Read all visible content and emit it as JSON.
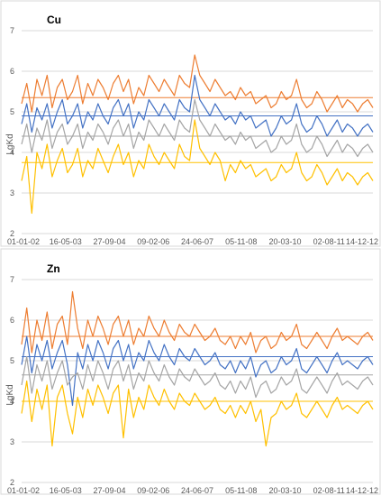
{
  "chart_data": [
    {
      "type": "line",
      "title": "Cu",
      "ylabel": "LgKd",
      "xlabel": "",
      "ylim": [
        2,
        7
      ],
      "yticks": [
        2,
        3,
        4,
        5,
        6,
        7
      ],
      "xticks": [
        "01-01-02",
        "16-05-03",
        "27-09-04",
        "09-02-06",
        "24-06-07",
        "05-11-08",
        "20-03-10",
        "02-08-11",
        "14-12-12"
      ],
      "grid": true,
      "legend": "none",
      "series": [
        {
          "color": "#ED7D31",
          "mean": 5.35,
          "values": [
            5.2,
            5.7,
            5.0,
            5.8,
            5.4,
            5.9,
            5.1,
            5.6,
            5.8,
            5.3,
            5.5,
            5.9,
            5.2,
            5.7,
            5.4,
            5.8,
            5.6,
            5.3,
            5.7,
            5.9,
            5.5,
            5.8,
            5.2,
            5.6,
            5.4,
            5.9,
            5.7,
            5.5,
            5.8,
            5.6,
            5.4,
            5.9,
            5.7,
            5.6,
            6.4,
            5.9,
            5.7,
            5.5,
            5.8,
            5.6,
            5.4,
            5.5,
            5.3,
            5.6,
            5.4,
            5.5,
            5.2,
            5.3,
            5.4,
            5.1,
            5.2,
            5.5,
            5.3,
            5.4,
            5.8,
            5.3,
            5.1,
            5.2,
            5.5,
            5.3,
            5.0,
            5.2,
            5.4,
            5.1,
            5.3,
            5.2,
            5.0,
            5.2,
            5.3,
            5.1
          ]
        },
        {
          "color": "#4472C4",
          "mean": 4.9,
          "values": [
            4.7,
            5.2,
            4.5,
            5.1,
            4.8,
            5.2,
            4.6,
            5.0,
            5.3,
            4.7,
            4.9,
            5.2,
            4.6,
            5.0,
            4.8,
            5.2,
            4.9,
            4.7,
            5.1,
            5.3,
            4.9,
            5.2,
            4.6,
            5.0,
            4.8,
            5.3,
            5.1,
            4.9,
            5.2,
            5.0,
            4.8,
            5.3,
            5.1,
            5.0,
            5.9,
            5.3,
            5.1,
            4.9,
            5.2,
            5.0,
            4.8,
            4.9,
            4.7,
            5.0,
            4.8,
            4.9,
            4.6,
            4.7,
            4.8,
            4.4,
            4.6,
            4.9,
            4.7,
            4.8,
            5.2,
            4.7,
            4.5,
            4.6,
            4.9,
            4.7,
            4.4,
            4.6,
            4.8,
            4.5,
            4.7,
            4.6,
            4.4,
            4.6,
            4.7,
            4.5
          ]
        },
        {
          "color": "#A5A5A5",
          "mean": 4.4,
          "values": [
            4.2,
            4.7,
            4.0,
            4.6,
            4.3,
            4.8,
            4.1,
            4.5,
            4.7,
            4.2,
            4.4,
            4.7,
            4.1,
            4.5,
            4.3,
            4.7,
            4.5,
            4.2,
            4.6,
            4.8,
            4.4,
            4.7,
            4.1,
            4.5,
            4.3,
            4.8,
            4.6,
            4.4,
            4.7,
            4.5,
            4.3,
            4.8,
            4.6,
            4.5,
            5.3,
            4.8,
            4.6,
            4.4,
            4.7,
            4.5,
            4.3,
            4.4,
            4.2,
            4.5,
            4.3,
            4.4,
            4.1,
            4.2,
            4.3,
            4.0,
            4.1,
            4.4,
            4.2,
            4.3,
            4.7,
            4.2,
            4.0,
            4.1,
            4.4,
            4.2,
            3.9,
            4.1,
            4.3,
            4.0,
            4.2,
            4.1,
            3.9,
            4.1,
            4.2,
            4.0
          ]
        },
        {
          "color": "#FFC000",
          "mean": 3.75,
          "values": [
            3.3,
            3.9,
            2.5,
            4.0,
            3.6,
            4.2,
            3.4,
            3.8,
            4.1,
            3.5,
            3.7,
            4.1,
            3.4,
            3.8,
            3.6,
            4.1,
            3.8,
            3.5,
            3.9,
            4.2,
            3.7,
            4.0,
            3.4,
            3.8,
            3.6,
            4.2,
            3.9,
            3.7,
            4.0,
            3.8,
            3.6,
            4.2,
            3.9,
            3.8,
            4.8,
            4.1,
            3.9,
            3.7,
            4.0,
            3.8,
            3.3,
            3.7,
            3.5,
            3.8,
            3.6,
            3.7,
            3.4,
            3.5,
            3.6,
            3.3,
            3.4,
            3.7,
            3.5,
            3.6,
            4.0,
            3.5,
            3.3,
            3.4,
            3.7,
            3.5,
            3.2,
            3.4,
            3.6,
            3.3,
            3.5,
            3.4,
            3.2,
            3.4,
            3.5,
            3.3
          ]
        }
      ]
    },
    {
      "type": "line",
      "title": "Zn",
      "ylabel": "LgKd",
      "xlabel": "",
      "ylim": [
        2,
        7
      ],
      "yticks": [
        2,
        3,
        4,
        5,
        6,
        7
      ],
      "xticks": [
        "01-01-02",
        "16-05-03",
        "27-09-04",
        "09-02-06",
        "24-06-07",
        "05-11-08",
        "20-03-10",
        "02-08-11",
        "14-12-12"
      ],
      "grid": true,
      "legend": "none",
      "series": [
        {
          "color": "#ED7D31",
          "mean": 5.6,
          "values": [
            5.4,
            6.3,
            5.2,
            6.0,
            5.5,
            6.2,
            5.3,
            5.9,
            6.1,
            5.4,
            6.7,
            5.8,
            5.3,
            6.0,
            5.6,
            6.1,
            5.8,
            5.4,
            5.9,
            6.1,
            5.6,
            6.0,
            5.4,
            5.8,
            5.6,
            6.1,
            5.8,
            5.6,
            6.0,
            5.7,
            5.5,
            5.9,
            5.7,
            5.6,
            5.9,
            5.7,
            5.5,
            5.6,
            5.8,
            5.5,
            5.4,
            5.6,
            5.3,
            5.6,
            5.4,
            5.7,
            5.2,
            5.5,
            5.6,
            5.3,
            5.4,
            5.7,
            5.5,
            5.6,
            5.9,
            5.4,
            5.3,
            5.5,
            5.7,
            5.5,
            5.3,
            5.6,
            5.8,
            5.5,
            5.6,
            5.5,
            5.4,
            5.6,
            5.7,
            5.5
          ]
        },
        {
          "color": "#4472C4",
          "mean": 5.1,
          "values": [
            4.9,
            5.6,
            4.7,
            5.4,
            5.0,
            5.5,
            4.8,
            5.2,
            5.5,
            4.9,
            3.9,
            5.2,
            4.8,
            5.4,
            5.0,
            5.5,
            5.2,
            4.8,
            5.3,
            5.5,
            5.0,
            5.4,
            4.8,
            5.2,
            5.0,
            5.5,
            5.2,
            5.0,
            5.4,
            5.1,
            4.9,
            5.3,
            5.1,
            5.0,
            5.3,
            5.1,
            4.9,
            5.0,
            5.2,
            4.9,
            4.8,
            5.0,
            4.7,
            5.0,
            4.8,
            5.1,
            4.6,
            4.9,
            5.0,
            4.7,
            4.8,
            5.1,
            4.9,
            5.0,
            5.3,
            4.8,
            4.7,
            4.9,
            5.1,
            4.9,
            4.7,
            5.0,
            5.2,
            4.9,
            5.0,
            4.9,
            4.8,
            5.0,
            5.1,
            4.9
          ]
        },
        {
          "color": "#A5A5A5",
          "mean": 4.65,
          "values": [
            4.4,
            5.1,
            4.2,
            4.9,
            4.5,
            5.0,
            4.3,
            4.7,
            5.0,
            4.4,
            4.6,
            4.7,
            4.3,
            4.9,
            4.5,
            5.0,
            4.7,
            4.3,
            4.8,
            5.0,
            4.5,
            4.9,
            4.3,
            4.7,
            4.5,
            5.0,
            4.7,
            4.5,
            4.9,
            4.6,
            4.4,
            4.8,
            4.6,
            4.5,
            4.8,
            4.6,
            4.4,
            4.5,
            4.7,
            4.4,
            4.3,
            4.5,
            4.2,
            4.5,
            4.3,
            4.6,
            4.1,
            4.4,
            4.5,
            4.2,
            4.3,
            4.6,
            4.4,
            4.5,
            4.8,
            4.3,
            4.2,
            4.4,
            4.6,
            4.4,
            4.2,
            4.5,
            4.7,
            4.4,
            4.5,
            4.4,
            4.3,
            4.5,
            4.6,
            4.4
          ]
        },
        {
          "color": "#FFC000",
          "mean": 4.0,
          "values": [
            3.7,
            4.5,
            3.5,
            4.3,
            3.8,
            4.4,
            2.9,
            4.1,
            4.4,
            3.7,
            3.2,
            4.1,
            3.6,
            4.3,
            3.9,
            4.4,
            4.1,
            3.7,
            4.2,
            4.4,
            3.1,
            4.3,
            3.6,
            4.1,
            3.8,
            4.4,
            4.1,
            3.9,
            4.3,
            4.0,
            3.8,
            4.2,
            4.0,
            3.9,
            4.2,
            4.0,
            3.8,
            3.9,
            4.1,
            3.8,
            3.7,
            3.9,
            3.6,
            3.9,
            3.7,
            4.0,
            3.5,
            3.8,
            2.9,
            3.6,
            3.7,
            4.0,
            3.8,
            3.9,
            4.2,
            3.7,
            3.6,
            3.8,
            4.0,
            3.8,
            3.6,
            3.9,
            4.1,
            3.8,
            3.9,
            3.8,
            3.7,
            3.9,
            4.0,
            3.8
          ]
        }
      ]
    }
  ]
}
